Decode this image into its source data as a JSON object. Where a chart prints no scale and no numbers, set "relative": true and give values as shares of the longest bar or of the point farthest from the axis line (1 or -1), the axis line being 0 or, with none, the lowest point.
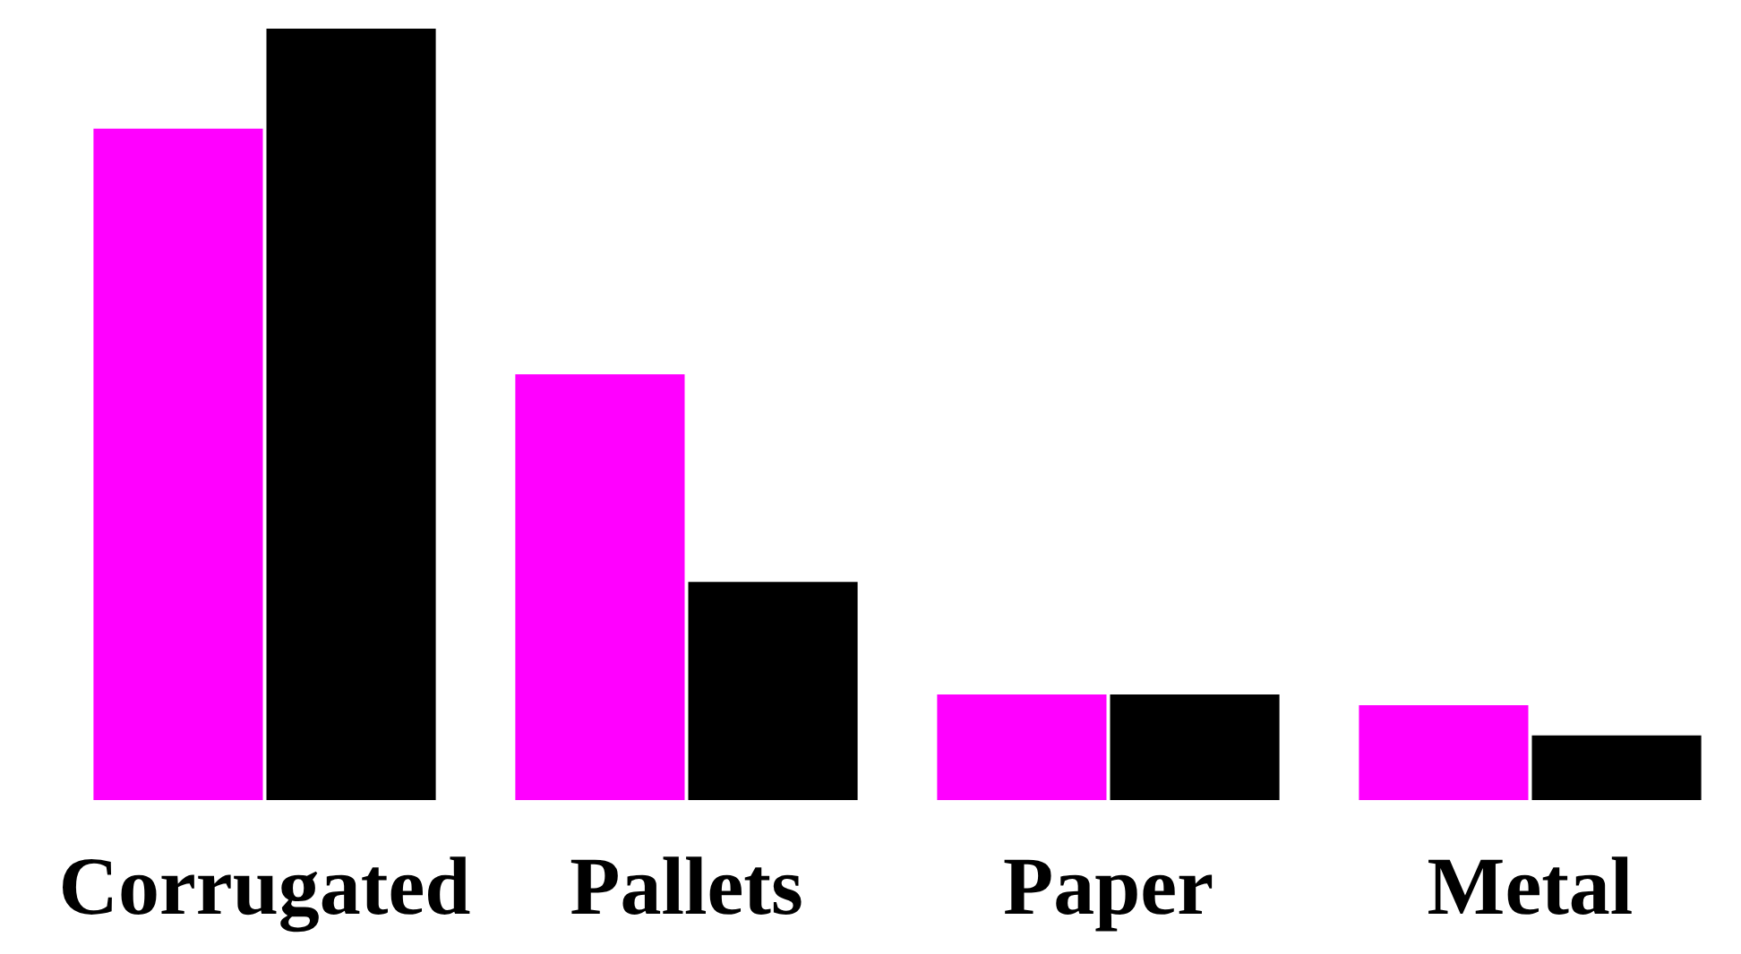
{
  "chart_data": {
    "type": "bar",
    "relative": true,
    "categories": [
      "Corrugated",
      "Pallets",
      "Paper",
      "Metal"
    ],
    "series": [
      {
        "color": "#ff00ff",
        "values": [
          0.871,
          0.554,
          0.141,
          0.127
        ]
      },
      {
        "color": "#000000",
        "values": [
          1,
          0.286,
          0.141,
          0.088
        ]
      }
    ]
  }
}
